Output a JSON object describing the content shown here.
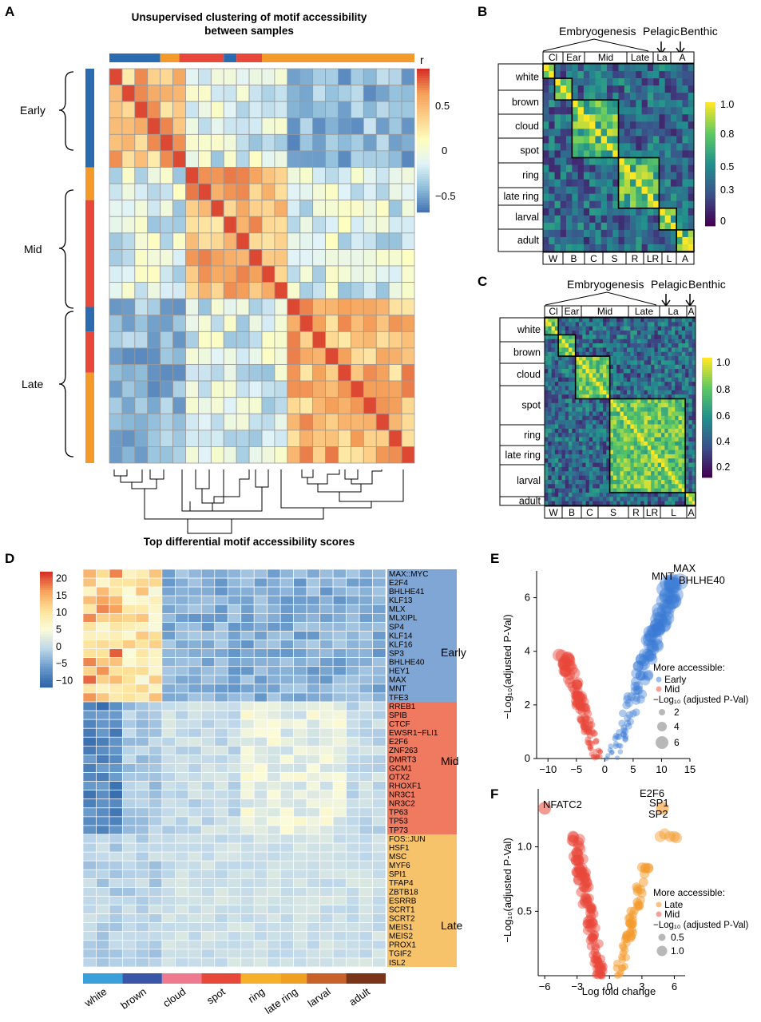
{
  "colors": {
    "early": "#2b6cb0",
    "mid": "#e8483a",
    "late": "#f39a2b",
    "heat_low": "#4a7bb7",
    "heat_mid": "#fefec0",
    "heat_high": "#d73027",
    "viridis": [
      "#440154",
      "#3b528b",
      "#21908d",
      "#5dc963",
      "#fde725"
    ],
    "stage_colors": [
      "#3aa0dc",
      "#3a56a8",
      "#ef7a90",
      "#e8483a",
      "#f6b02c",
      "#f0a020",
      "#c8622a",
      "#7a3418"
    ]
  },
  "panels": {
    "a": {
      "letter": "A",
      "title_line1": "Unsupervised clustering of motif accessibility",
      "title_line2": "between samples",
      "legend_title": "r",
      "legend_ticks": [
        "0.5",
        "0",
        "−0.5"
      ],
      "row_groups": [
        "Early",
        "Mid",
        "Late"
      ]
    },
    "b": {
      "letter": "B",
      "header_labels": [
        "Embryogenesis",
        "Pelagic",
        "Benthic"
      ],
      "top_labels": [
        "Cl",
        "Ear",
        "Mid",
        "Late",
        "La",
        "A"
      ],
      "row_labels": [
        "white",
        "brown",
        "cloud",
        "spot",
        "ring",
        "late ring",
        "larval",
        "adult"
      ],
      "bottom_labels": [
        "W",
        "B",
        "C",
        "S",
        "R",
        "LR",
        "L",
        "A"
      ],
      "legend_ticks": [
        "1.0",
        "0.8",
        "0.5",
        "0.3",
        "0"
      ]
    },
    "c": {
      "letter": "C",
      "header_labels": [
        "Embryogenesis",
        "Pelagic",
        "Benthic"
      ],
      "top_labels": [
        "Cl",
        "Ear",
        "Mid",
        "Late",
        "La",
        "A"
      ],
      "row_labels": [
        "white",
        "brown",
        "cloud",
        "spot",
        "ring",
        "late ring",
        "larval",
        "adult"
      ],
      "bottom_labels": [
        "W",
        "B",
        "C",
        "S",
        "R",
        "LR",
        "L",
        "A"
      ],
      "legend_ticks": [
        "1.0",
        "0.8",
        "0.6",
        "0.4",
        "0.2"
      ]
    },
    "d": {
      "letter": "D",
      "title": "Top differential motif accessibility scores",
      "legend_ticks": [
        "20",
        "15",
        "10",
        "5",
        "0",
        "−5",
        "−10"
      ],
      "motifs_early": [
        "MAX::MYC",
        "E2F4",
        "BHLHE41",
        "KLF13",
        "MLX",
        "MLXIPL",
        "SP4",
        "KLF14",
        "KLF16",
        "SP3",
        "BHLHE40",
        "HEY1",
        "MAX",
        "MNT",
        "TFE3"
      ],
      "motifs_mid": [
        "RREB1",
        "SPIB",
        "CTCF",
        "EWSR1−FLI1",
        "E2F6",
        "ZNF263",
        "DMRT3",
        "GCM1",
        "OTX2",
        "RHOXF1",
        "NR3C1",
        "NR3C2",
        "TP63",
        "TP53",
        "TP73"
      ],
      "motifs_late": [
        "FOS::JUN",
        "HSF1",
        "MSC",
        "MYF6",
        "SPI1",
        "TFAP4",
        "ZBTB18",
        "ESRRB",
        "SCRT1",
        "SCRT2",
        "MEIS1",
        "MEIS2",
        "PROX1",
        "TGIF2",
        "ISL2"
      ],
      "group_labels": [
        "Early",
        "Mid",
        "Late"
      ],
      "stages": [
        "white",
        "brown",
        "cloud",
        "spot",
        "ring",
        "late ring",
        "larval",
        "adult"
      ]
    },
    "e": {
      "letter": "E",
      "ylabel": "−Log₁₀(adjusted P-Val)",
      "xticks": [
        "−10",
        "−5",
        "0",
        "5",
        "10",
        "15"
      ],
      "yticks": [
        "0",
        "2",
        "4",
        "6"
      ],
      "labels": [
        "MNT",
        "MAX",
        "BHLHE40"
      ],
      "legend_title": "More accessible:",
      "legend_items": [
        "Early",
        "Mid"
      ],
      "size_title": "−Log₁₀ (adjusted P-Val)",
      "size_ticks": [
        "2",
        "4",
        "6"
      ]
    },
    "f": {
      "letter": "F",
      "ylabel": "−Log₁₀(adjusted P-Val)",
      "xlabel": "Log fold change",
      "xticks": [
        "−6",
        "−3",
        "0",
        "3",
        "6"
      ],
      "yticks": [
        "0.5",
        "1.0"
      ],
      "labels": [
        "NFATC2",
        "E2F6",
        "SP1",
        "SP2"
      ],
      "legend_title": "More accessible:",
      "legend_items": [
        "Late",
        "Mid"
      ],
      "size_title": "−Log₁₀ (adjusted P-Val)",
      "size_ticks": [
        "0.5",
        "1.0"
      ]
    }
  },
  "chart_data": [
    {
      "type": "heatmap",
      "title": "Unsupervised clustering of motif accessibility between samples",
      "rows": 24,
      "cols": 24,
      "colorbar": {
        "label": "r",
        "range": [
          -0.6,
          0.8
        ]
      },
      "groups": [
        {
          "name": "Early",
          "size": 6
        },
        {
          "name": "Mid",
          "size": 8
        },
        {
          "name": "Late",
          "size": 10
        }
      ]
    },
    {
      "type": "heatmap",
      "title": "B",
      "stages": [
        "white",
        "brown",
        "cloud",
        "spot",
        "ring",
        "late ring",
        "larval",
        "adult"
      ],
      "colorbar": {
        "range": [
          0,
          1.0
        ]
      }
    },
    {
      "type": "heatmap",
      "title": "C",
      "stages": [
        "white",
        "brown",
        "cloud",
        "spot",
        "ring",
        "late ring",
        "larval",
        "adult"
      ],
      "colorbar": {
        "range": [
          0.15,
          1.0
        ]
      }
    },
    {
      "type": "heatmap",
      "title": "Top differential motif accessibility scores",
      "colorbar": {
        "range": [
          -12,
          22
        ]
      },
      "stage_columns": [
        3,
        3,
        3,
        3,
        3,
        2,
        3,
        3
      ]
    },
    {
      "type": "scatter",
      "title": "E",
      "xlim": [
        -12,
        15
      ],
      "ylim": [
        0,
        7
      ],
      "series": [
        {
          "name": "Early",
          "x_range": [
            0,
            15
          ],
          "y_range": [
            0,
            6.6
          ]
        },
        {
          "name": "Mid",
          "x_range": [
            -9,
            0
          ],
          "y_range": [
            0,
            3.9
          ]
        }
      ]
    },
    {
      "type": "scatter",
      "title": "F",
      "xlim": [
        -6.5,
        7
      ],
      "ylim": [
        0,
        1.45
      ],
      "series": [
        {
          "name": "Late",
          "x_range": [
            0,
            6
          ],
          "y_range": [
            0,
            1.3
          ]
        },
        {
          "name": "Mid",
          "x_range": [
            -6,
            0
          ],
          "y_range": [
            0,
            1.3
          ]
        }
      ]
    }
  ]
}
